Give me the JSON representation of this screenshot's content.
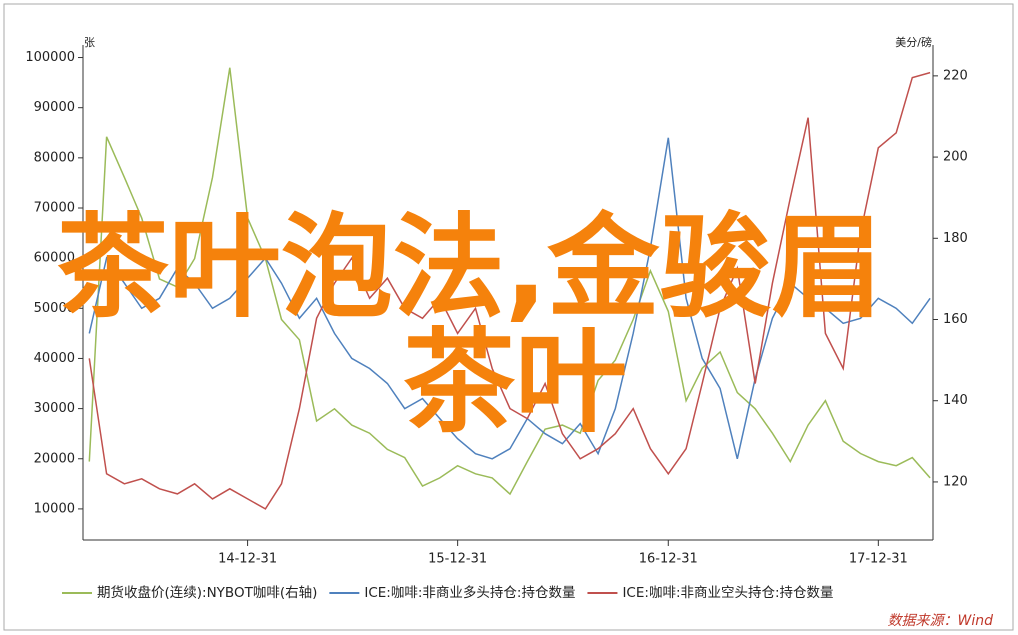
{
  "overlay": {
    "lines": [
      "茶叶泡法,金骏眉",
      "茶叶"
    ]
  },
  "chart_data": {
    "type": "line",
    "y_label": "张",
    "y2_label": "美分/磅",
    "source": "数据来源：Wind",
    "x": [
      "14-03-31",
      "14-04-30",
      "14-05-31",
      "14-06-30",
      "14-07-31",
      "14-08-31",
      "14-09-30",
      "14-10-31",
      "14-11-30",
      "14-12-31",
      "15-01-31",
      "15-02-28",
      "15-03-31",
      "15-04-30",
      "15-05-31",
      "15-06-30",
      "15-07-31",
      "15-08-31",
      "15-09-30",
      "15-10-31",
      "15-11-30",
      "15-12-31",
      "16-01-31",
      "16-02-29",
      "16-03-31",
      "16-04-30",
      "16-05-31",
      "16-06-30",
      "16-07-31",
      "16-08-31",
      "16-09-30",
      "16-10-31",
      "16-11-30",
      "16-12-31",
      "17-01-31",
      "17-02-28",
      "17-03-31",
      "17-04-30",
      "17-05-31",
      "17-06-30",
      "17-07-31",
      "17-08-31",
      "17-09-30",
      "17-10-31",
      "17-11-30",
      "17-12-31",
      "18-01-31",
      "18-02-28",
      "18-03-31"
    ],
    "xlim": [
      "14-03-20",
      "18-04-05"
    ],
    "xticks": [
      "14-12-31",
      "15-12-31",
      "16-12-31",
      "17-12-31"
    ],
    "ylim": [
      3800,
      102500
    ],
    "yticks": [
      10000,
      20000,
      30000,
      40000,
      50000,
      60000,
      70000,
      80000,
      90000,
      100000
    ],
    "y2lim": [
      105.7,
      227.6
    ],
    "y2ticks": [
      120,
      140,
      160,
      180,
      200,
      220
    ],
    "series": [
      {
        "name": "期货收盘价(连续):NYBOT咖啡(右轴)",
        "color": "#9bbb59",
        "axis": "y2",
        "values": [
          125,
          205,
          195,
          185,
          170,
          168,
          175,
          195,
          222,
          185,
          175,
          160,
          155,
          135,
          138,
          134,
          132,
          128,
          126,
          119,
          121,
          124,
          122,
          121,
          117,
          125,
          133,
          134,
          132,
          145,
          150,
          160,
          172,
          162,
          140,
          148,
          152,
          142,
          138,
          132,
          125,
          134,
          140,
          130,
          127,
          125,
          124,
          126,
          121
        ]
      },
      {
        "name": "ICE:咖啡:非商业多头持仓:持仓数量",
        "color": "#4f81bd",
        "values": [
          45000,
          60000,
          55000,
          50000,
          52000,
          58000,
          55000,
          50000,
          52000,
          56000,
          60000,
          55000,
          48000,
          52000,
          45000,
          40000,
          38000,
          35000,
          30000,
          32000,
          28000,
          24000,
          21000,
          20000,
          22000,
          28000,
          25000,
          23000,
          27000,
          21000,
          30000,
          45000,
          62000,
          84000,
          52000,
          40000,
          34000,
          20000,
          36000,
          48000,
          55000,
          52000,
          50000,
          47000,
          48000,
          52000,
          50000,
          47000,
          52000
        ]
      },
      {
        "name": "ICE:咖啡:非商业空头持仓:持仓数量",
        "color": "#c0504d",
        "values": [
          40000,
          17000,
          15000,
          16000,
          14000,
          13000,
          15000,
          12000,
          14000,
          12000,
          10000,
          15000,
          30000,
          48000,
          55000,
          60000,
          52000,
          56000,
          50000,
          48000,
          52000,
          45000,
          50000,
          38000,
          30000,
          28000,
          35000,
          25000,
          20000,
          22000,
          25000,
          30000,
          22000,
          17000,
          22000,
          35000,
          50000,
          58000,
          35000,
          55000,
          72000,
          88000,
          45000,
          38000,
          65000,
          82000,
          85000,
          96000,
          97000
        ]
      }
    ]
  }
}
